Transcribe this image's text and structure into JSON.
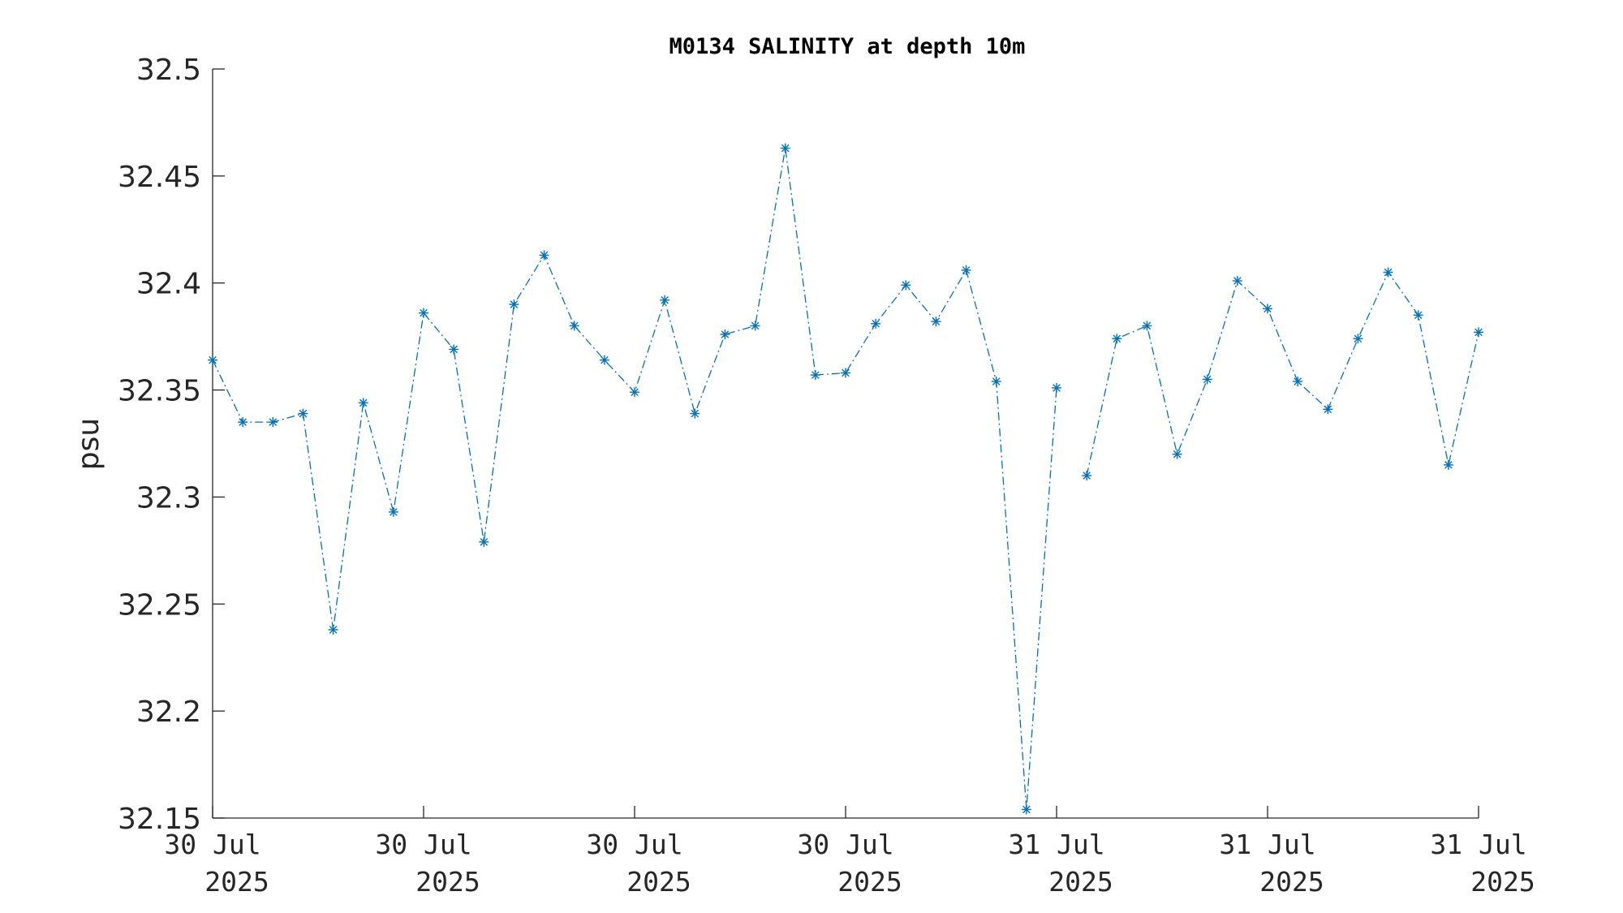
{
  "chart_data": {
    "type": "line",
    "title": "M0134 SALINITY at depth 10m",
    "ylabel": "psu",
    "xlabel": "",
    "ylim": [
      32.15,
      32.5
    ],
    "yticks": [
      32.15,
      32.2,
      32.25,
      32.3,
      32.35,
      32.4,
      32.45,
      32.5
    ],
    "ytick_labels": [
      "32.15",
      "32.2",
      "32.25",
      "32.3",
      "32.35",
      "32.4",
      "32.45",
      "32.5"
    ],
    "xlim": [
      0,
      42
    ],
    "xticks": [
      0,
      7,
      14,
      21,
      28,
      35,
      42
    ],
    "xtick_labels": [
      {
        "line1": "30 Jul",
        "line2": "2025"
      },
      {
        "line1": "30 Jul",
        "line2": "2025"
      },
      {
        "line1": "30 Jul",
        "line2": "2025"
      },
      {
        "line1": "30 Jul",
        "line2": "2025"
      },
      {
        "line1": "31 Jul",
        "line2": "2025"
      },
      {
        "line1": "31 Jul",
        "line2": "2025"
      },
      {
        "line1": "31 Jul",
        "line2": "2025"
      }
    ],
    "series_color": "#0072BD",
    "marker": "asterisk",
    "line_style": "dash-dot",
    "grid": false,
    "x": [
      0,
      1,
      2,
      3,
      4,
      5,
      6,
      7,
      8,
      9,
      10,
      11,
      12,
      13,
      14,
      15,
      16,
      17,
      18,
      19,
      20,
      21,
      22,
      23,
      24,
      25,
      26,
      27,
      28,
      29,
      30,
      31,
      32,
      33,
      34,
      35,
      36,
      37,
      38,
      39,
      40,
      41,
      42
    ],
    "y": [
      32.364,
      32.335,
      32.335,
      32.339,
      32.238,
      32.344,
      32.293,
      32.386,
      32.369,
      32.279,
      32.39,
      32.413,
      32.38,
      32.364,
      32.349,
      32.392,
      32.339,
      32.376,
      32.38,
      32.463,
      32.357,
      32.358,
      32.381,
      32.399,
      32.382,
      32.406,
      32.354,
      32.154,
      32.351,
      32.31,
      32.374,
      32.38,
      32.32,
      32.355,
      32.401,
      32.388,
      32.354,
      32.341,
      32.374,
      32.405,
      32.385,
      32.315,
      32.377
    ],
    "line_break_after_index": 28
  }
}
